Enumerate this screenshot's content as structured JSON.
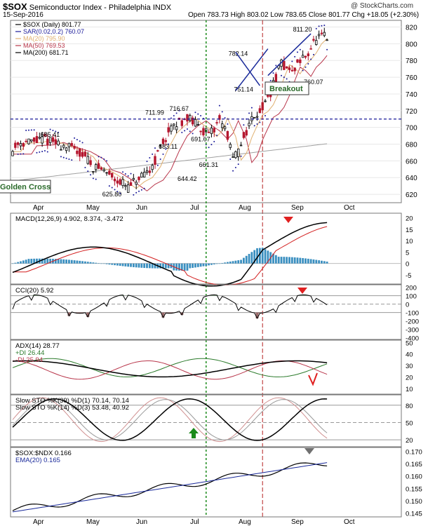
{
  "header": {
    "symbol": "$SOX",
    "name": "Semiconductor Index - Philadelphia  INDX",
    "date": "15-Sep-2016",
    "ohlc": "Open 783.73  High 803.02  Low 783.65  Close 801.77  Chg +18.05 (+2.30%)",
    "watermark": "@ StockCharts.com"
  },
  "chart_data": [
    {
      "id": "price",
      "type": "candlestick",
      "legend": [
        "$SOX (Daily) 801.77",
        "SAR(0.02,0.2) 760.07",
        "MA(20) 795.90",
        "MA(50) 769.53",
        "MA(200) 681.71"
      ],
      "yticks": [
        620,
        640,
        660,
        680,
        700,
        720,
        740,
        760,
        780,
        800,
        820
      ],
      "ylim": [
        610,
        828
      ],
      "points": [
        {
          "label": "685.41",
          "value": 685.41
        },
        {
          "label": "711.99",
          "value": 711.99
        },
        {
          "label": "716.67",
          "value": 716.67
        },
        {
          "label": "691.67",
          "value": 691.67
        },
        {
          "label": "683.11",
          "value": 683.11
        },
        {
          "label": "661.31",
          "value": 661.31
        },
        {
          "label": "644.42",
          "value": 644.42
        },
        {
          "label": "625.80",
          "value": 625.8
        },
        {
          "label": "782.14",
          "value": 782.14
        },
        {
          "label": "751.14",
          "value": 751.14
        },
        {
          "label": "811.20",
          "value": 811.2
        },
        {
          "label": "760.07",
          "value": 760.07
        }
      ],
      "annotations": [
        "Breakout",
        "Golden Cross"
      ],
      "reference_line": 710
    },
    {
      "id": "macd",
      "type": "line",
      "legend": [
        "MACD(12,26,9) 4.902, 8.374, -3.472"
      ],
      "yticks": [
        "20",
        "15",
        "10",
        "5",
        "0",
        "-5"
      ],
      "ylim": [
        -9,
        22
      ]
    },
    {
      "id": "cci",
      "type": "line",
      "legend": [
        "CCI(20) 5.92"
      ],
      "yticks": [
        "200",
        "100",
        "0",
        "-100",
        "-200",
        "-300",
        "-400"
      ],
      "ylim": [
        -420,
        230
      ]
    },
    {
      "id": "adx",
      "type": "line",
      "legend": [
        "ADX(14) 28.77",
        "+DI 26.44",
        "-DI 25.94"
      ],
      "yticks": [
        "50",
        "40",
        "30",
        "20",
        "10"
      ],
      "ylim": [
        5,
        52
      ]
    },
    {
      "id": "sto",
      "type": "line",
      "legend": [
        "Slow STO %K(39) %D(1) 70.14, 70.14",
        "Slow STO %K(14) %D(3) 53.48, 40.92"
      ],
      "yticks": [
        "80",
        "50",
        "20"
      ],
      "ylim": [
        8,
        98
      ]
    },
    {
      "id": "ratio",
      "type": "line",
      "legend": [
        "$SOX:$NDX 0.166",
        "EMA(20) 0.165"
      ],
      "yticks": [
        "0.170",
        "0.165",
        "0.160",
        "0.155",
        "0.150",
        "0.145"
      ],
      "ylim": [
        0.1435,
        0.1715
      ]
    }
  ],
  "x_axis": {
    "labels": [
      "Apr",
      "May",
      "Jun",
      "Jul",
      "Aug",
      "Sep",
      "Oct"
    ]
  },
  "colors": {
    "up": "#000000",
    "down": "#b5172f",
    "ma20": "#e0b070",
    "ma50": "#b8354a",
    "ma200": "#a0a0a0",
    "sar": "#1a1a9a",
    "macd_hist": "#3a8fc0",
    "signal_red": "#d31f1f",
    "green_area": "#6f9f6f",
    "maroon_area": "#7a3a3a",
    "green_line": "#2a7a2a",
    "blue": "#1a2a9a",
    "arrow_red": "#e02020",
    "arrow_green": "#1a8a1a",
    "arrow_gray": "#707070"
  }
}
